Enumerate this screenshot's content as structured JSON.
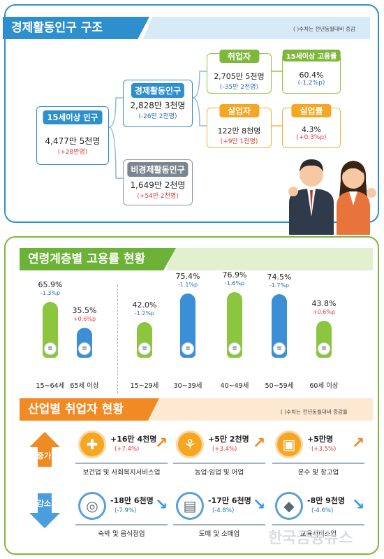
{
  "structure": {
    "title": "경제활동인구 구조",
    "note": "( )수치는 전년동월대비 증감",
    "pop15": {
      "label": "15세이상 인구",
      "value": "4,477만 5천명",
      "change": "(+28만명)"
    },
    "active": {
      "label": "경제활동인구",
      "value": "2,828만 3천명",
      "change": "(-26만 2천명)"
    },
    "inactive": {
      "label": "비경제활동인구",
      "value": "1,649만 2천명",
      "change": "(+54만 2천명)"
    },
    "employed": {
      "label": "취업자",
      "value": "2,705만 5천명",
      "change": "(-35만 2천명)"
    },
    "emp_rate": {
      "label": "15세이상 고용률",
      "value": "60.4%",
      "change": "(-1.2%p)"
    },
    "unemployed": {
      "label": "실업자",
      "value": "122만 8천명",
      "change": "(+9만 1천명)"
    },
    "unemp_rate": {
      "label": "실업률",
      "value": "4.3%",
      "change": "(+0.3%p)"
    }
  },
  "age": {
    "title": "연령계층별 고용률 현황",
    "groups": [
      {
        "label": "15~64세",
        "pct": "65.9%",
        "change": "-1.3%p",
        "value": 65.9,
        "dir": "down",
        "color": "green"
      },
      {
        "label": "65세 이상",
        "pct": "35.5%",
        "change": "+0.6%p",
        "value": 35.5,
        "dir": "up",
        "color": "blue"
      },
      {
        "label": "15~29세",
        "pct": "42.0%",
        "change": "-1.2%p",
        "value": 42.0,
        "dir": "down",
        "color": "green"
      },
      {
        "label": "30~39세",
        "pct": "75.4%",
        "change": "-1.1%p",
        "value": 75.4,
        "dir": "down",
        "color": "blue"
      },
      {
        "label": "40~49세",
        "pct": "76.9%",
        "change": "-1.6%p",
        "value": 76.9,
        "dir": "down",
        "color": "green"
      },
      {
        "label": "50~59세",
        "pct": "74.5%",
        "change": "-1.7%p",
        "value": 74.5,
        "dir": "down",
        "color": "blue"
      },
      {
        "label": "60세 이상",
        "pct": "43.8%",
        "change": "+0.6%p",
        "value": 43.8,
        "dir": "up",
        "color": "green"
      }
    ]
  },
  "industry": {
    "title": "산업별 취업자 현황",
    "note": "( )수치는 전년동월대비 증감율",
    "increase_label": "증가",
    "decrease_label": "감소",
    "increase": [
      {
        "name": "보건업 및 사회복지서비스업",
        "value": "+16만 4천명",
        "change": "(+7.4%)",
        "icon": "first-aid-kit-icon"
      },
      {
        "name": "농업·임업 및 어업",
        "value": "+5만 2천명",
        "change": "(+3.4%)",
        "icon": "wheat-icon"
      },
      {
        "name": "운수 및 창고업",
        "value": "+5만명",
        "change": "(+3.5%)",
        "icon": "truck-icon"
      }
    ],
    "decrease": [
      {
        "name": "숙박 및 음식점업",
        "value": "-18만 6천명",
        "change": "(-7.9%)",
        "icon": "dining-icon"
      },
      {
        "name": "도매 및 소매업",
        "value": "-17만 6천명",
        "change": "(-4.8%)",
        "icon": "shopping-basket-icon"
      },
      {
        "name": "교육서비스업",
        "value": "-8만 9천명",
        "change": "(-4.6%)",
        "icon": "graduation-cap-icon"
      }
    ]
  },
  "watermark": "한국금융뉴스",
  "colors": {
    "blue": "#2e8fce",
    "green": "#7db83a",
    "orange": "#f28a24"
  }
}
